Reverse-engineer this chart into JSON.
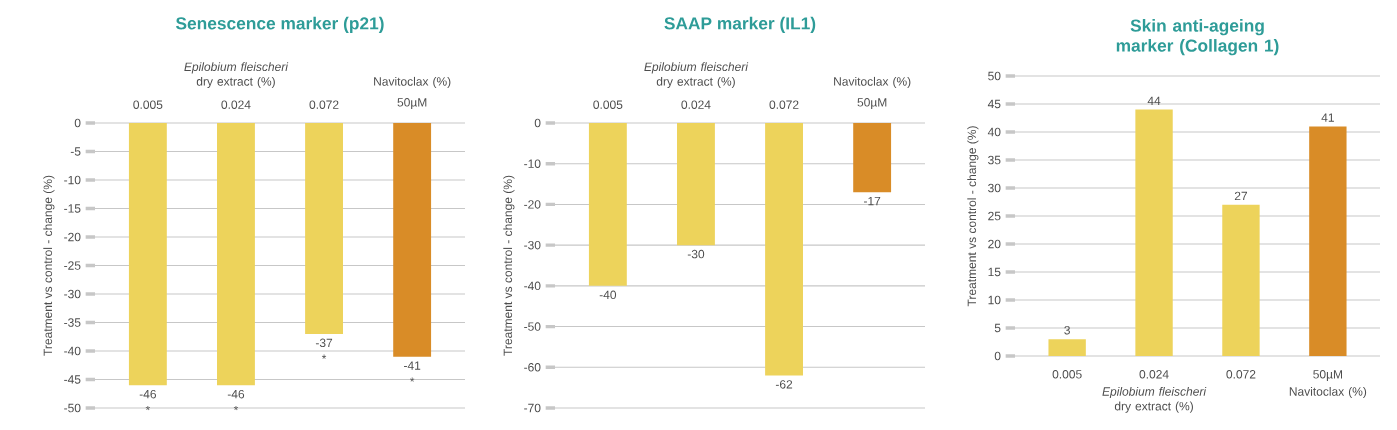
{
  "chart_data": [
    {
      "type": "bar",
      "title": "Senescence marker (p21)",
      "ylabel": "Treatment vs control - change (%)",
      "categories": [
        "0.005",
        "0.024",
        "0.072",
        "50µM"
      ],
      "values": [
        -46,
        -46,
        -37,
        -41
      ],
      "colors": [
        "#edd35b",
        "#edd35b",
        "#edd35b",
        "#d98c27"
      ],
      "ylim": [
        -50,
        0
      ],
      "yticks": [
        -50,
        -45,
        -40,
        -35,
        -30,
        -25,
        -20,
        -15,
        -10,
        -5,
        0
      ],
      "grid": "y",
      "data_labels": true,
      "annotations": [
        "*Epilobium fleischeri* dry extract (%)",
        "Navitoclax (%)",
        {
          "text": "*",
          "x": "0.005",
          "y": -46
        },
        {
          "text": "*",
          "x": "0.024",
          "y": -46
        },
        {
          "text": "*",
          "x": "0.072",
          "y": -37
        },
        {
          "text": "*",
          "x": "50µM",
          "y": -41
        }
      ]
    },
    {
      "type": "bar",
      "title": "SAAP marker (IL1)",
      "ylabel": "Treatment vs control - change (%)",
      "categories": [
        "0.005",
        "0.024",
        "0.072",
        "50µM"
      ],
      "values": [
        -40,
        -30,
        -62,
        -17
      ],
      "colors": [
        "#edd35b",
        "#edd35b",
        "#edd35b",
        "#d98c27"
      ],
      "ylim": [
        -70,
        0
      ],
      "yticks": [
        -70,
        -60,
        -50,
        -40,
        -30,
        -20,
        -10,
        0
      ],
      "grid": "y",
      "data_labels": true,
      "annotations": [
        "*Epilobium fleischeri* dry extract (%)",
        "Navitoclax (%)"
      ]
    },
    {
      "type": "bar",
      "title": "Skin anti-ageing marker (Collagen 1)",
      "ylabel": "Treatment vs control - change (%)",
      "categories": [
        "0.005",
        "0.024",
        "0.072",
        "50µM"
      ],
      "values": [
        3,
        44,
        27,
        41
      ],
      "colors": [
        "#edd35b",
        "#edd35b",
        "#edd35b",
        "#d98c27"
      ],
      "ylim": [
        0,
        50
      ],
      "yticks": [
        0,
        5,
        10,
        15,
        20,
        25,
        30,
        35,
        40,
        45,
        50
      ],
      "grid": "y",
      "data_labels": true,
      "annotations": [
        "*Epilobium fleischeri* dry extract (%)",
        "Navitoclax (%)"
      ]
    }
  ]
}
